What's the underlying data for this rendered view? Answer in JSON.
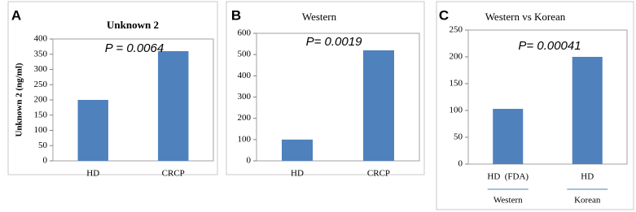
{
  "chart_data": [
    {
      "type": "bar",
      "label": "A",
      "title": "Unknown 2",
      "ylabel": "Unknown 2 (ng/ml)",
      "annotation": "P = 0.0064",
      "categories": [
        "HD",
        "CRCP"
      ],
      "values": [
        200,
        360
      ],
      "color": "#4f81bd",
      "ylim": [
        0,
        400
      ],
      "yticks": [
        0,
        50,
        100,
        150,
        200,
        250,
        300,
        350,
        400
      ]
    },
    {
      "type": "bar",
      "label": "B",
      "title": "Western",
      "annotation": "P= 0.0019",
      "categories": [
        "HD",
        "CRCP"
      ],
      "values": [
        100,
        520
      ],
      "color": "#4f81bd",
      "ylim": [
        0,
        600
      ],
      "yticks": [
        0,
        100,
        200,
        300,
        400,
        500,
        600
      ]
    },
    {
      "type": "bar",
      "label": "C",
      "title": "Western vs Korean",
      "annotation": "P= 0.00041",
      "categories": [
        "HD  (FDA)",
        "HD"
      ],
      "x_groups": [
        "Western",
        "Korean"
      ],
      "values": [
        103,
        200
      ],
      "color": "#4f81bd",
      "ylim": [
        0,
        250
      ],
      "yticks": [
        0,
        50,
        100,
        150,
        200,
        250
      ]
    }
  ]
}
